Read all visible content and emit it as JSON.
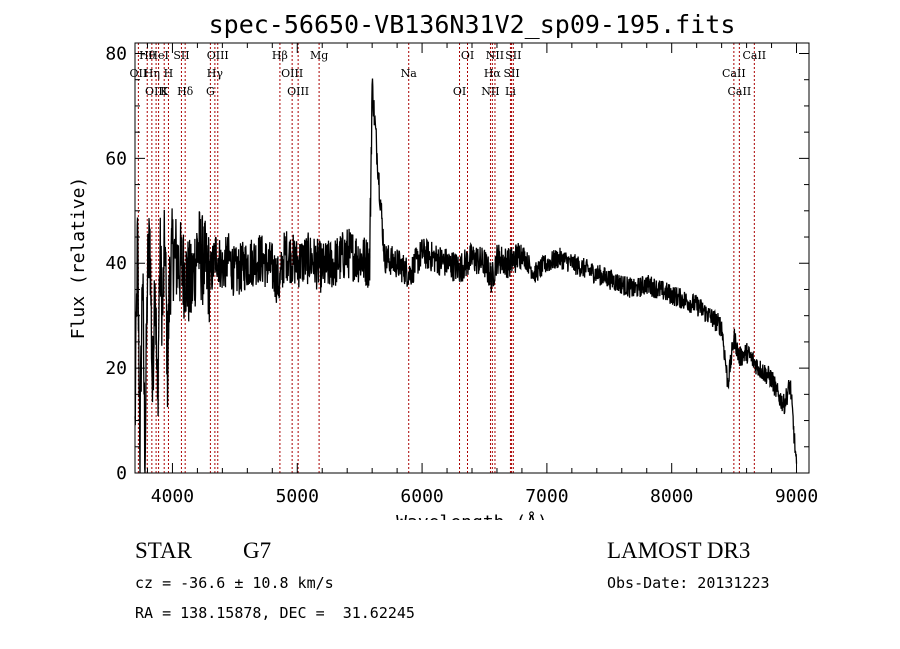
{
  "chart_data": {
    "type": "line",
    "title": "spec-56650-VB136N31V2_sp09-195.fits",
    "xlabel": "Wavelength (Å)",
    "ylabel": "Flux (relative)",
    "xlim": [
      3700,
      9100
    ],
    "ylim": [
      0,
      82
    ],
    "xticks": [
      4000,
      5000,
      6000,
      7000,
      8000,
      9000
    ],
    "xtick_labels": [
      "4000",
      "5000",
      "6000",
      "7000",
      "8000",
      "9000"
    ],
    "yticks": [
      0,
      20,
      40,
      60,
      80
    ],
    "ytick_labels": [
      "0",
      "20",
      "40",
      "60",
      "80"
    ],
    "grid": false,
    "series": [
      {
        "name": "spectrum",
        "color": "#000000",
        "x": [
          3700,
          3720,
          3740,
          3760,
          3780,
          3800,
          3820,
          3840,
          3860,
          3880,
          3900,
          3920,
          3940,
          3960,
          3980,
          4000,
          4050,
          4100,
          4150,
          4200,
          4250,
          4300,
          4350,
          4400,
          4450,
          4500,
          4600,
          4700,
          4800,
          4860,
          4900,
          5000,
          5100,
          5200,
          5300,
          5400,
          5500,
          5580,
          5600,
          5700,
          5800,
          5900,
          6000,
          6100,
          6200,
          6300,
          6400,
          6500,
          6560,
          6600,
          6700,
          6800,
          6900,
          7000,
          7100,
          7200,
          7300,
          7400,
          7500,
          7600,
          7700,
          7800,
          7900,
          8000,
          8100,
          8200,
          8300,
          8400,
          8450,
          8500,
          8540,
          8600,
          8700,
          8800,
          8850,
          8900,
          8950,
          9000
        ],
        "y": [
          8,
          45,
          5,
          40,
          2,
          38,
          45,
          15,
          40,
          12,
          42,
          30,
          45,
          20,
          38,
          42,
          40,
          38,
          35,
          43,
          40,
          37,
          42,
          39,
          41,
          38,
          40,
          41,
          39,
          36,
          42,
          40,
          41,
          39,
          40,
          42,
          41,
          40,
          74,
          41,
          40,
          38,
          42,
          41,
          40,
          39,
          41,
          40,
          37,
          41,
          40,
          42,
          38,
          40,
          41,
          40,
          39,
          38,
          37,
          36,
          35,
          36,
          35,
          34,
          33,
          32,
          30,
          28,
          17,
          26,
          22,
          23,
          20,
          18,
          15,
          13,
          17,
          1
        ]
      }
    ],
    "lines": [
      {
        "label": "Hθ",
        "wave": 3798
      },
      {
        "label": "OII",
        "wave": 3727
      },
      {
        "label": "OIII",
        "wave": 3869
      },
      {
        "label": "HeI",
        "wave": 3889
      },
      {
        "label": "Hη",
        "wave": 3835
      },
      {
        "label": "K",
        "wave": 3934
      },
      {
        "label": "SII",
        "wave": 4072
      },
      {
        "label": "H",
        "wave": 3968
      },
      {
        "label": "Hδ",
        "wave": 4102
      },
      {
        "label": "OIII",
        "wave": 4363
      },
      {
        "label": "Hγ",
        "wave": 4340
      },
      {
        "label": "G",
        "wave": 4304
      },
      {
        "label": "Hβ",
        "wave": 4861
      },
      {
        "label": "OIII",
        "wave": 4959
      },
      {
        "label": "OIII",
        "wave": 5007
      },
      {
        "label": "Mg",
        "wave": 5175
      },
      {
        "label": "Na",
        "wave": 5893
      },
      {
        "label": "OI",
        "wave": 6300
      },
      {
        "label": "OI",
        "wave": 6364
      },
      {
        "label": "Hα",
        "wave": 6563
      },
      {
        "label": "NII",
        "wave": 6548
      },
      {
        "label": "NII",
        "wave": 6584
      },
      {
        "label": "SII",
        "wave": 6717
      },
      {
        "label": "Li",
        "wave": 6708
      },
      {
        "label": "SII",
        "wave": 6731
      },
      {
        "label": "CaII",
        "wave": 8498
      },
      {
        "label": "CaII",
        "wave": 8542
      },
      {
        "label": "CaII",
        "wave": 8662
      }
    ],
    "line_color": "#aa0000"
  },
  "info": {
    "object_class": "STAR",
    "subclass": "G7",
    "survey": "LAMOST DR3",
    "cz": "cz = -36.6 ± 10.8 km/s",
    "obs_date": "Obs-Date: 20131223",
    "coords": "RA = 138.15878, DEC =  31.62245"
  }
}
